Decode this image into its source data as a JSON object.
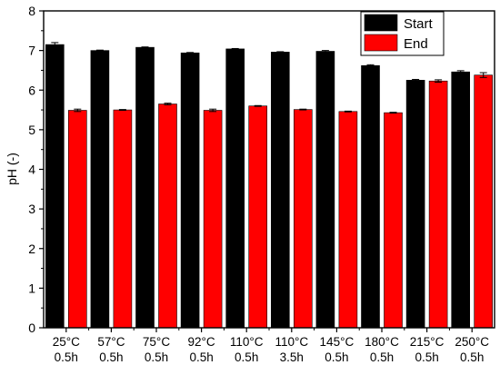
{
  "chart_data": {
    "type": "bar",
    "title": "",
    "ylabel": "pH (-)",
    "xlabel": "",
    "ylim": [
      0,
      8
    ],
    "yticks": [
      0,
      1,
      2,
      3,
      4,
      5,
      6,
      7,
      8
    ],
    "grid": false,
    "legend_position": "top-right",
    "categories": [
      [
        "25°C",
        "0.5h"
      ],
      [
        "57°C",
        "0.5h"
      ],
      [
        "75°C",
        "0.5h"
      ],
      [
        "92°C",
        "0.5h"
      ],
      [
        "110°C",
        "0.5h"
      ],
      [
        "110°C",
        "3.5h"
      ],
      [
        "145°C",
        "0.5h"
      ],
      [
        "180°C",
        "0.5h"
      ],
      [
        "215°C",
        "0.5h"
      ],
      [
        "250°C",
        "0.5h"
      ]
    ],
    "series": [
      {
        "name": "Start",
        "color": "#000000",
        "values": [
          7.15,
          7.0,
          7.08,
          6.94,
          7.04,
          6.96,
          6.98,
          6.62,
          6.25,
          6.46
        ],
        "errors": [
          0.05,
          0.01,
          0.01,
          0.01,
          0.01,
          0.01,
          0.02,
          0.02,
          0.02,
          0.03
        ]
      },
      {
        "name": "End",
        "color": "#ff0000",
        "values": [
          5.49,
          5.5,
          5.65,
          5.49,
          5.6,
          5.51,
          5.46,
          5.43,
          6.23,
          6.38
        ],
        "errors": [
          0.03,
          0.01,
          0.02,
          0.03,
          0.01,
          0.01,
          0.01,
          0.01,
          0.03,
          0.06
        ]
      }
    ]
  }
}
